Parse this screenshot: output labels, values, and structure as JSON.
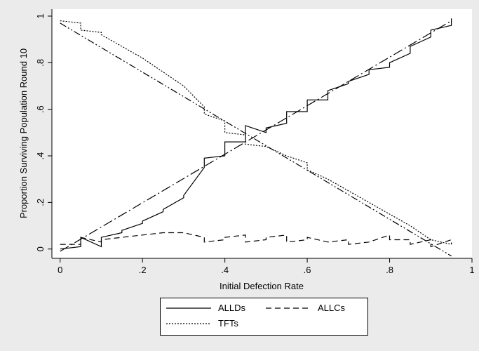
{
  "chart_data": {
    "type": "line",
    "title": "",
    "xlabel": "Initial Defection Rate",
    "ylabel": "Proportion Surviving Population Round 10",
    "xlim": [
      -0.02,
      1.0
    ],
    "ylim": [
      -0.04,
      1.03
    ],
    "x_ticks": [
      0,
      0.2,
      0.4,
      0.6,
      0.8,
      1
    ],
    "x_tick_labels": [
      "0",
      ".2",
      ".4",
      ".6",
      ".8",
      "1"
    ],
    "y_ticks": [
      0,
      0.2,
      0.4,
      0.6,
      0.8,
      1
    ],
    "y_tick_labels": [
      "0",
      ".2",
      ".4",
      ".6",
      ".8",
      "1"
    ],
    "grid": false,
    "legend_position": "bottom",
    "series": [
      {
        "name": "ALLDs",
        "style": "solid",
        "x": [
          0,
          0.05,
          0.05,
          0.1,
          0.1,
          0.15,
          0.15,
          0.2,
          0.2,
          0.25,
          0.25,
          0.3,
          0.3,
          0.35,
          0.35,
          0.4,
          0.4,
          0.45,
          0.45,
          0.5,
          0.5,
          0.55,
          0.55,
          0.6,
          0.6,
          0.65,
          0.65,
          0.7,
          0.7,
          0.75,
          0.75,
          0.8,
          0.8,
          0.85,
          0.85,
          0.9,
          0.9,
          0.95,
          0.95
        ],
        "y": [
          0,
          0.01,
          0.05,
          0.01,
          0.05,
          0.07,
          0.08,
          0.11,
          0.12,
          0.16,
          0.17,
          0.22,
          0.23,
          0.35,
          0.39,
          0.4,
          0.46,
          0.46,
          0.53,
          0.5,
          0.52,
          0.54,
          0.59,
          0.59,
          0.64,
          0.64,
          0.68,
          0.71,
          0.72,
          0.75,
          0.77,
          0.78,
          0.8,
          0.84,
          0.87,
          0.91,
          0.94,
          0.96,
          0.99
        ]
      },
      {
        "name": "ALLDs trend",
        "style": "longdash-dot",
        "x": [
          0,
          0.95
        ],
        "y": [
          -0.01,
          0.98
        ]
      },
      {
        "name": "ALLCs",
        "style": "dashed",
        "x": [
          0,
          0.05,
          0.05,
          0.1,
          0.1,
          0.15,
          0.2,
          0.25,
          0.3,
          0.35,
          0.35,
          0.4,
          0.4,
          0.45,
          0.45,
          0.5,
          0.5,
          0.55,
          0.55,
          0.6,
          0.6,
          0.65,
          0.7,
          0.7,
          0.75,
          0.8,
          0.8,
          0.85,
          0.85,
          0.9,
          0.9,
          0.95,
          0.95
        ],
        "y": [
          0.02,
          0.02,
          0.05,
          0.03,
          0.04,
          0.05,
          0.06,
          0.07,
          0.07,
          0.05,
          0.03,
          0.04,
          0.05,
          0.06,
          0.03,
          0.04,
          0.05,
          0.06,
          0.03,
          0.04,
          0.05,
          0.03,
          0.04,
          0.02,
          0.03,
          0.06,
          0.04,
          0.04,
          0.02,
          0.04,
          0.01,
          0.04,
          0.02
        ]
      },
      {
        "name": "TFTs",
        "style": "dotted",
        "x": [
          0,
          0.05,
          0.05,
          0.1,
          0.1,
          0.15,
          0.2,
          0.25,
          0.3,
          0.35,
          0.35,
          0.4,
          0.4,
          0.45,
          0.45,
          0.5,
          0.55,
          0.6,
          0.6,
          0.65,
          0.7,
          0.75,
          0.8,
          0.85,
          0.9,
          0.95
        ],
        "y": [
          0.98,
          0.97,
          0.94,
          0.93,
          0.92,
          0.87,
          0.82,
          0.76,
          0.7,
          0.61,
          0.58,
          0.55,
          0.5,
          0.49,
          0.45,
          0.44,
          0.4,
          0.37,
          0.34,
          0.3,
          0.25,
          0.2,
          0.15,
          0.1,
          0.04,
          0.02
        ]
      },
      {
        "name": "TFTs trend",
        "style": "dash-dot-dot",
        "x": [
          0,
          0.95
        ],
        "y": [
          0.97,
          -0.03
        ]
      }
    ]
  },
  "legend": {
    "items": [
      {
        "label": "ALLDs",
        "style": "solid"
      },
      {
        "label": "ALLCs",
        "style": "dashed"
      },
      {
        "label": "TFTs",
        "style": "dotted"
      }
    ]
  },
  "colors": {
    "background": "#ebebeb",
    "plot_area": "#ffffff",
    "line": "#000000"
  }
}
